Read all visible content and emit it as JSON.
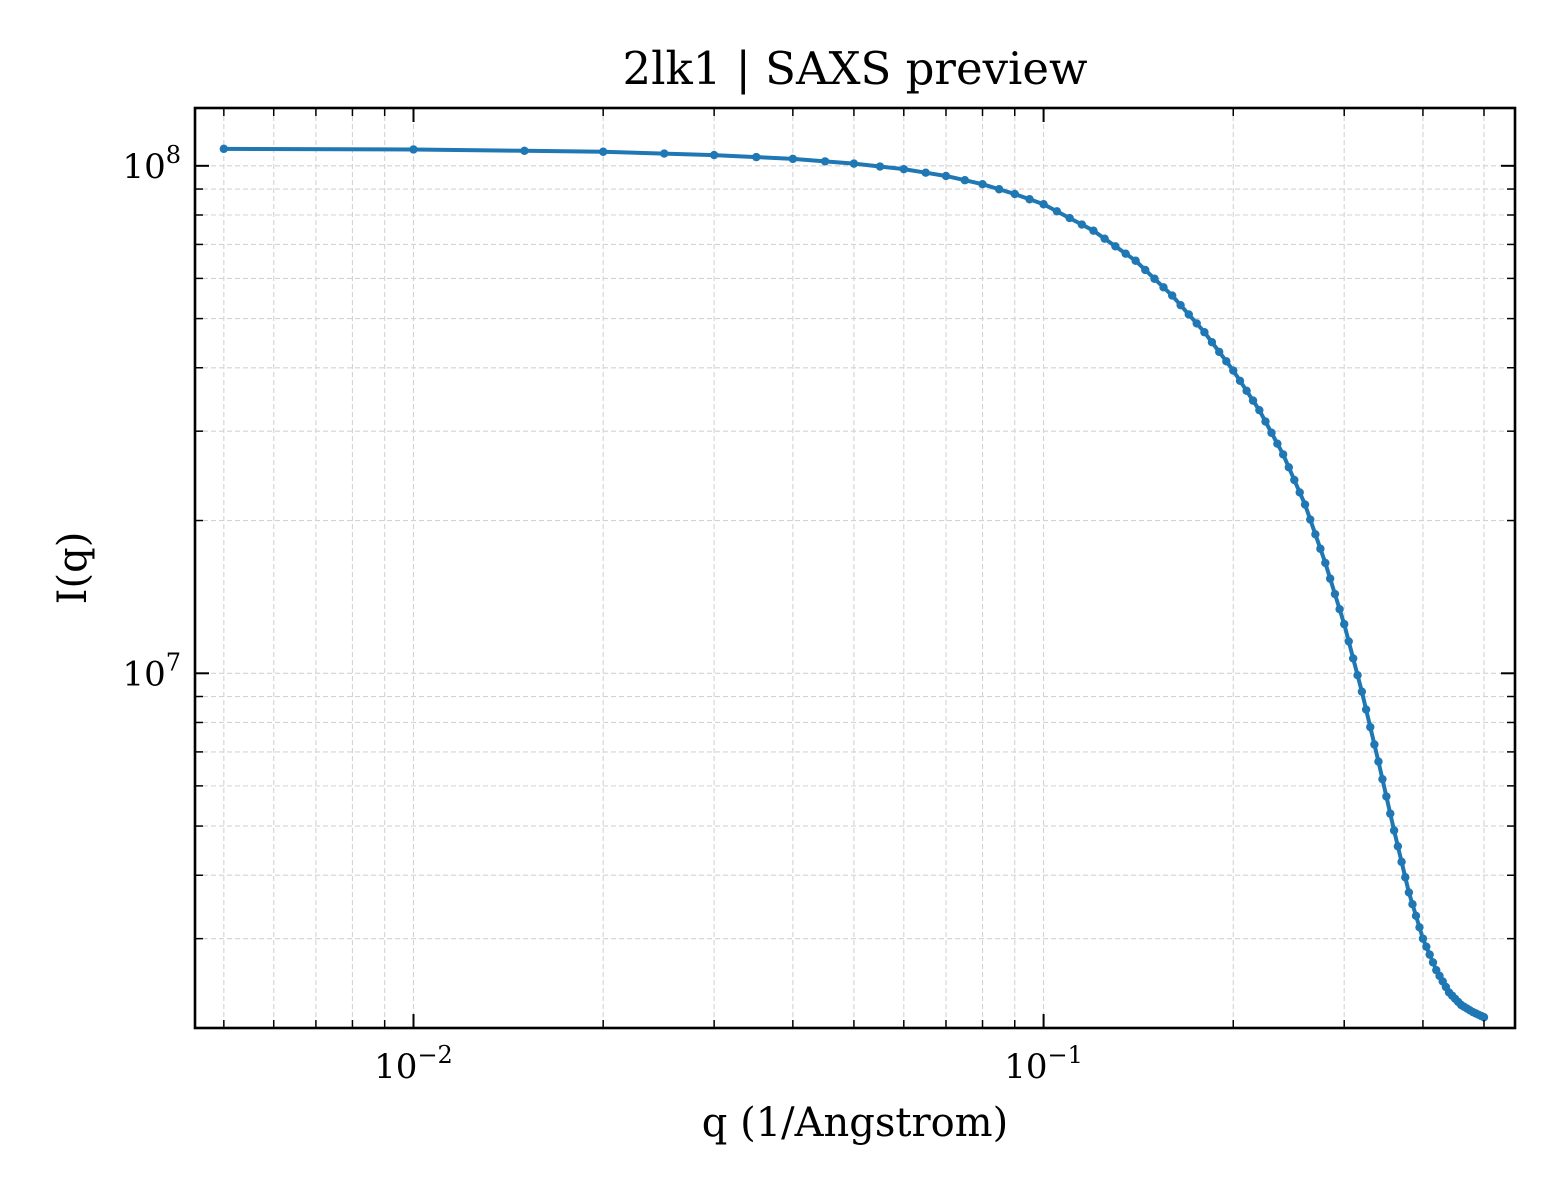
{
  "chart_data": {
    "type": "line",
    "title": "2lk1 | SAXS preview",
    "xlabel": "q (1/Angstrom)",
    "ylabel": "I(q)",
    "xscale": "log",
    "yscale": "log",
    "xlim": [
      0.0045,
      0.56
    ],
    "ylim": [
      2000000,
      130000000
    ],
    "grid": true,
    "color": "#1f77b4",
    "x_ticks": [
      {
        "value": 0.01,
        "base": "10",
        "exp": "−2"
      },
      {
        "value": 0.1,
        "base": "10",
        "exp": "−1"
      }
    ],
    "y_ticks": [
      {
        "value": 10000000,
        "base": "10",
        "exp": "7"
      },
      {
        "value": 100000000,
        "base": "10",
        "exp": "8"
      }
    ],
    "q_range": {
      "start": 0.005,
      "end": 0.5,
      "step": 0.005
    },
    "profile_knots": {
      "q": [
        0.005,
        0.01,
        0.02,
        0.03,
        0.04,
        0.05,
        0.06,
        0.07,
        0.08,
        0.09,
        0.1,
        0.12,
        0.14,
        0.16,
        0.18,
        0.2,
        0.22,
        0.24,
        0.26,
        0.28,
        0.3,
        0.32,
        0.34,
        0.36,
        0.38,
        0.4,
        0.42,
        0.44,
        0.46,
        0.48,
        0.5
      ],
      "I": [
        108000000,
        107700000,
        106600000,
        105000000,
        103200000,
        101000000,
        98500000,
        95500000,
        92000000,
        88000000,
        84000000,
        74500000,
        65000000,
        55500000,
        47000000,
        39500000,
        33000000,
        27000000,
        21500000,
        16500000,
        12500000,
        9200000,
        6700000,
        4900000,
        3700000,
        3000000,
        2600000,
        2350000,
        2220000,
        2150000,
        2100000
      ]
    }
  }
}
